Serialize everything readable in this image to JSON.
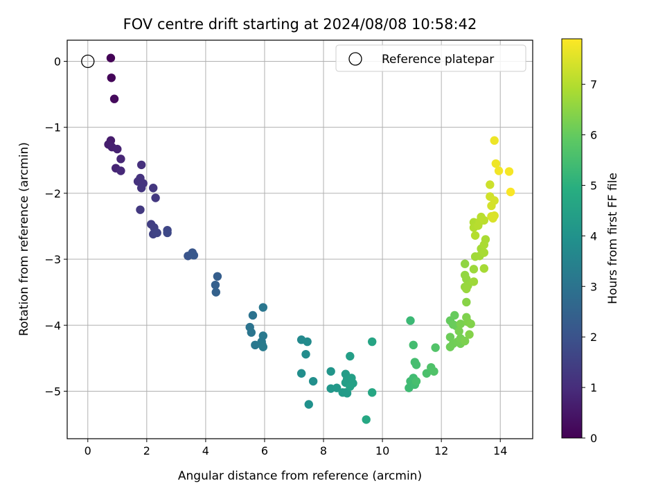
{
  "chart_data": {
    "type": "scatter",
    "title": "FOV centre drift starting at 2024/08/08 10:58:42",
    "xlabel": "Angular distance from reference (arcmin)",
    "ylabel": "Rotation from reference (arcmin)",
    "xlim": [
      -0.7,
      15.1
    ],
    "ylim": [
      -5.72,
      0.32
    ],
    "xticks": [
      0,
      2,
      4,
      6,
      8,
      10,
      12,
      14
    ],
    "yticks": [
      0,
      -1,
      -2,
      -3,
      -4,
      -5
    ],
    "grid": true,
    "legend": {
      "placement": "top-right",
      "entries": [
        "Reference platepar"
      ]
    },
    "reference_point": {
      "x": 0,
      "y": 0
    },
    "colorbar": {
      "label": "Hours from first FF file",
      "range": [
        0,
        7.9
      ],
      "ticks": [
        0,
        1,
        2,
        3,
        4,
        5,
        6,
        7
      ],
      "colormap": "viridis"
    },
    "points": [
      {
        "x": 0.78,
        "y": 0.05,
        "t": 0.05
      },
      {
        "x": 0.8,
        "y": -0.25,
        "t": 0.12
      },
      {
        "x": 0.9,
        "y": -0.57,
        "t": 0.2
      },
      {
        "x": 0.78,
        "y": -1.2,
        "t": 0.6
      },
      {
        "x": 0.7,
        "y": -1.26,
        "t": 0.65
      },
      {
        "x": 0.82,
        "y": -1.3,
        "t": 0.7
      },
      {
        "x": 1.0,
        "y": -1.33,
        "t": 0.75
      },
      {
        "x": 0.95,
        "y": -1.62,
        "t": 0.8
      },
      {
        "x": 1.12,
        "y": -1.48,
        "t": 0.85
      },
      {
        "x": 1.12,
        "y": -1.66,
        "t": 0.9
      },
      {
        "x": 1.82,
        "y": -1.57,
        "t": 1.1
      },
      {
        "x": 1.7,
        "y": -1.82,
        "t": 1.12
      },
      {
        "x": 1.78,
        "y": -1.77,
        "t": 1.15
      },
      {
        "x": 1.88,
        "y": -1.85,
        "t": 1.18
      },
      {
        "x": 1.82,
        "y": -1.92,
        "t": 1.2
      },
      {
        "x": 2.22,
        "y": -1.92,
        "t": 1.25
      },
      {
        "x": 2.3,
        "y": -2.07,
        "t": 1.28
      },
      {
        "x": 1.78,
        "y": -2.25,
        "t": 1.3
      },
      {
        "x": 2.15,
        "y": -2.47,
        "t": 1.45
      },
      {
        "x": 2.25,
        "y": -2.52,
        "t": 1.5
      },
      {
        "x": 2.22,
        "y": -2.62,
        "t": 1.55
      },
      {
        "x": 2.35,
        "y": -2.6,
        "t": 1.6
      },
      {
        "x": 2.7,
        "y": -2.56,
        "t": 1.65
      },
      {
        "x": 2.7,
        "y": -2.6,
        "t": 1.7
      },
      {
        "x": 3.4,
        "y": -2.95,
        "t": 2.05
      },
      {
        "x": 3.55,
        "y": -2.9,
        "t": 2.1
      },
      {
        "x": 3.6,
        "y": -2.94,
        "t": 2.15
      },
      {
        "x": 4.4,
        "y": -3.26,
        "t": 2.35
      },
      {
        "x": 4.33,
        "y": -3.39,
        "t": 2.4
      },
      {
        "x": 4.35,
        "y": -3.5,
        "t": 2.45
      },
      {
        "x": 5.6,
        "y": -3.85,
        "t": 2.95
      },
      {
        "x": 5.5,
        "y": -4.03,
        "t": 3.0
      },
      {
        "x": 5.55,
        "y": -4.11,
        "t": 3.05
      },
      {
        "x": 5.95,
        "y": -3.73,
        "t": 3.1
      },
      {
        "x": 5.68,
        "y": -4.3,
        "t": 3.15
      },
      {
        "x": 5.95,
        "y": -4.16,
        "t": 3.18
      },
      {
        "x": 5.9,
        "y": -4.25,
        "t": 3.2
      },
      {
        "x": 5.92,
        "y": -4.3,
        "t": 3.22
      },
      {
        "x": 5.95,
        "y": -4.33,
        "t": 3.25
      },
      {
        "x": 7.25,
        "y": -4.22,
        "t": 3.7
      },
      {
        "x": 7.45,
        "y": -4.25,
        "t": 3.75
      },
      {
        "x": 7.4,
        "y": -4.44,
        "t": 3.8
      },
      {
        "x": 7.25,
        "y": -4.73,
        "t": 3.85
      },
      {
        "x": 7.65,
        "y": -4.85,
        "t": 3.9
      },
      {
        "x": 7.5,
        "y": -5.2,
        "t": 3.95
      },
      {
        "x": 8.25,
        "y": -4.7,
        "t": 4.1
      },
      {
        "x": 8.25,
        "y": -4.96,
        "t": 4.15
      },
      {
        "x": 8.45,
        "y": -4.95,
        "t": 4.2
      },
      {
        "x": 8.65,
        "y": -5.02,
        "t": 4.25
      },
      {
        "x": 8.75,
        "y": -5.02,
        "t": 4.28
      },
      {
        "x": 8.8,
        "y": -5.03,
        "t": 4.3
      },
      {
        "x": 8.75,
        "y": -4.74,
        "t": 4.33
      },
      {
        "x": 8.8,
        "y": -4.82,
        "t": 4.36
      },
      {
        "x": 8.75,
        "y": -4.87,
        "t": 4.38
      },
      {
        "x": 8.9,
        "y": -4.47,
        "t": 4.4
      },
      {
        "x": 8.95,
        "y": -4.8,
        "t": 4.42
      },
      {
        "x": 9.0,
        "y": -4.88,
        "t": 4.45
      },
      {
        "x": 8.9,
        "y": -4.93,
        "t": 4.48
      },
      {
        "x": 9.65,
        "y": -4.25,
        "t": 4.6
      },
      {
        "x": 9.65,
        "y": -5.02,
        "t": 4.65
      },
      {
        "x": 9.45,
        "y": -5.43,
        "t": 4.7
      },
      {
        "x": 10.95,
        "y": -3.93,
        "t": 5.3
      },
      {
        "x": 10.9,
        "y": -4.95,
        "t": 5.35
      },
      {
        "x": 10.95,
        "y": -4.85,
        "t": 5.38
      },
      {
        "x": 11.05,
        "y": -4.8,
        "t": 5.4
      },
      {
        "x": 11.1,
        "y": -4.9,
        "t": 5.42
      },
      {
        "x": 11.05,
        "y": -4.3,
        "t": 5.45
      },
      {
        "x": 11.1,
        "y": -4.56,
        "t": 5.48
      },
      {
        "x": 11.15,
        "y": -4.6,
        "t": 5.5
      },
      {
        "x": 11.15,
        "y": -4.85,
        "t": 5.52
      },
      {
        "x": 11.5,
        "y": -4.73,
        "t": 5.6
      },
      {
        "x": 11.65,
        "y": -4.64,
        "t": 5.65
      },
      {
        "x": 11.75,
        "y": -4.7,
        "t": 5.68
      },
      {
        "x": 11.8,
        "y": -4.34,
        "t": 5.7
      },
      {
        "x": 12.3,
        "y": -3.93,
        "t": 6.0
      },
      {
        "x": 12.45,
        "y": -3.85,
        "t": 6.02
      },
      {
        "x": 12.4,
        "y": -3.99,
        "t": 6.05
      },
      {
        "x": 12.5,
        "y": -4.01,
        "t": 6.07
      },
      {
        "x": 12.3,
        "y": -4.18,
        "t": 6.1
      },
      {
        "x": 12.3,
        "y": -4.33,
        "t": 6.12
      },
      {
        "x": 12.4,
        "y": -4.28,
        "t": 6.15
      },
      {
        "x": 12.55,
        "y": -4.25,
        "t": 6.18
      },
      {
        "x": 12.65,
        "y": -4.28,
        "t": 6.2
      },
      {
        "x": 12.65,
        "y": -4.2,
        "t": 6.22
      },
      {
        "x": 12.6,
        "y": -4.09,
        "t": 6.25
      },
      {
        "x": 12.65,
        "y": -3.98,
        "t": 6.28
      },
      {
        "x": 12.8,
        "y": -4.24,
        "t": 6.3
      },
      {
        "x": 12.85,
        "y": -3.88,
        "t": 6.33
      },
      {
        "x": 12.9,
        "y": -3.95,
        "t": 6.35
      },
      {
        "x": 13.0,
        "y": -3.98,
        "t": 6.38
      },
      {
        "x": 12.95,
        "y": -4.14,
        "t": 6.4
      },
      {
        "x": 12.85,
        "y": -3.65,
        "t": 6.45
      },
      {
        "x": 12.8,
        "y": -3.07,
        "t": 6.55
      },
      {
        "x": 12.8,
        "y": -3.24,
        "t": 6.58
      },
      {
        "x": 12.85,
        "y": -3.3,
        "t": 6.6
      },
      {
        "x": 12.8,
        "y": -3.42,
        "t": 6.62
      },
      {
        "x": 12.9,
        "y": -3.4,
        "t": 6.64
      },
      {
        "x": 12.85,
        "y": -3.45,
        "t": 6.66
      },
      {
        "x": 13.1,
        "y": -3.15,
        "t": 6.7
      },
      {
        "x": 13.1,
        "y": -3.34,
        "t": 6.72
      },
      {
        "x": 13.15,
        "y": -2.96,
        "t": 6.75
      },
      {
        "x": 13.3,
        "y": -2.95,
        "t": 6.78
      },
      {
        "x": 13.35,
        "y": -2.84,
        "t": 6.8
      },
      {
        "x": 13.45,
        "y": -3.14,
        "t": 6.82
      },
      {
        "x": 13.45,
        "y": -2.9,
        "t": 6.84
      },
      {
        "x": 13.5,
        "y": -2.7,
        "t": 6.86
      },
      {
        "x": 13.45,
        "y": -2.78,
        "t": 6.88
      },
      {
        "x": 13.1,
        "y": -2.44,
        "t": 6.95
      },
      {
        "x": 13.1,
        "y": -2.52,
        "t": 6.97
      },
      {
        "x": 13.15,
        "y": -2.64,
        "t": 7.0
      },
      {
        "x": 13.25,
        "y": -2.49,
        "t": 7.02
      },
      {
        "x": 13.3,
        "y": -2.43,
        "t": 7.04
      },
      {
        "x": 13.35,
        "y": -2.36,
        "t": 7.06
      },
      {
        "x": 13.45,
        "y": -2.41,
        "t": 7.08
      },
      {
        "x": 13.65,
        "y": -1.87,
        "t": 7.3
      },
      {
        "x": 13.65,
        "y": -2.05,
        "t": 7.35
      },
      {
        "x": 13.7,
        "y": -2.19,
        "t": 7.38
      },
      {
        "x": 13.8,
        "y": -2.11,
        "t": 7.4
      },
      {
        "x": 13.7,
        "y": -2.35,
        "t": 7.42
      },
      {
        "x": 13.75,
        "y": -2.38,
        "t": 7.45
      },
      {
        "x": 13.8,
        "y": -2.34,
        "t": 7.47
      },
      {
        "x": 13.8,
        "y": -1.2,
        "t": 7.7
      },
      {
        "x": 13.85,
        "y": -1.55,
        "t": 7.72
      },
      {
        "x": 13.95,
        "y": -1.66,
        "t": 7.75
      },
      {
        "x": 14.3,
        "y": -1.67,
        "t": 7.8
      },
      {
        "x": 14.35,
        "y": -1.98,
        "t": 7.85
      }
    ]
  }
}
